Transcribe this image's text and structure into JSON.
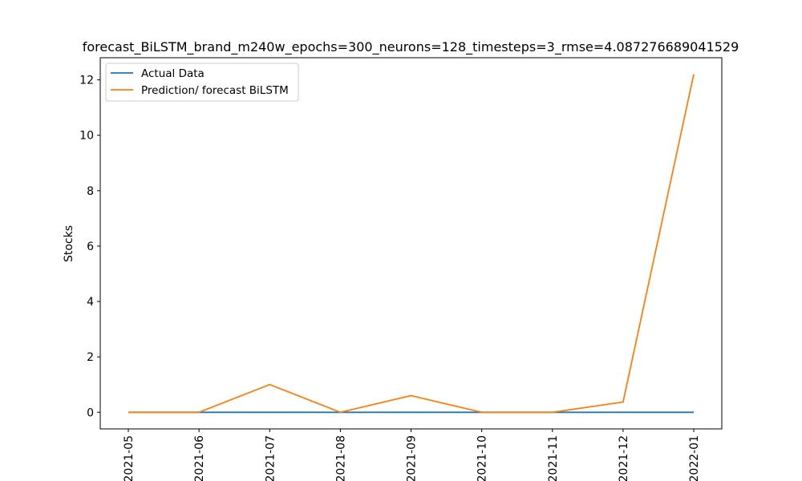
{
  "chart_data": {
    "type": "line",
    "title": "forecast_BiLSTM_brand_m240w_epochs=300_neurons=128_timesteps=3_rmse=4.087276689041529",
    "xlabel": "",
    "ylabel": "Stocks",
    "x": [
      "2021-05",
      "2021-06",
      "2021-07",
      "2021-08",
      "2021-09",
      "2021-10",
      "2021-11",
      "2021-12",
      "2022-01"
    ],
    "ylim": [
      -0.6,
      12.8
    ],
    "yticks": [
      0,
      2,
      4,
      6,
      8,
      10,
      12
    ],
    "grid": false,
    "legend_position": "top-left",
    "series": [
      {
        "name": "Actual Data",
        "color": "#1f77b4",
        "values": [
          0,
          0,
          0,
          0,
          0,
          0,
          0,
          0,
          0
        ]
      },
      {
        "name": "Prediction/ forecast BiLSTM",
        "color": "#ff7f0e",
        "values": [
          0,
          0,
          1.0,
          0,
          0.6,
          0,
          0,
          0.37,
          12.2
        ]
      }
    ]
  }
}
